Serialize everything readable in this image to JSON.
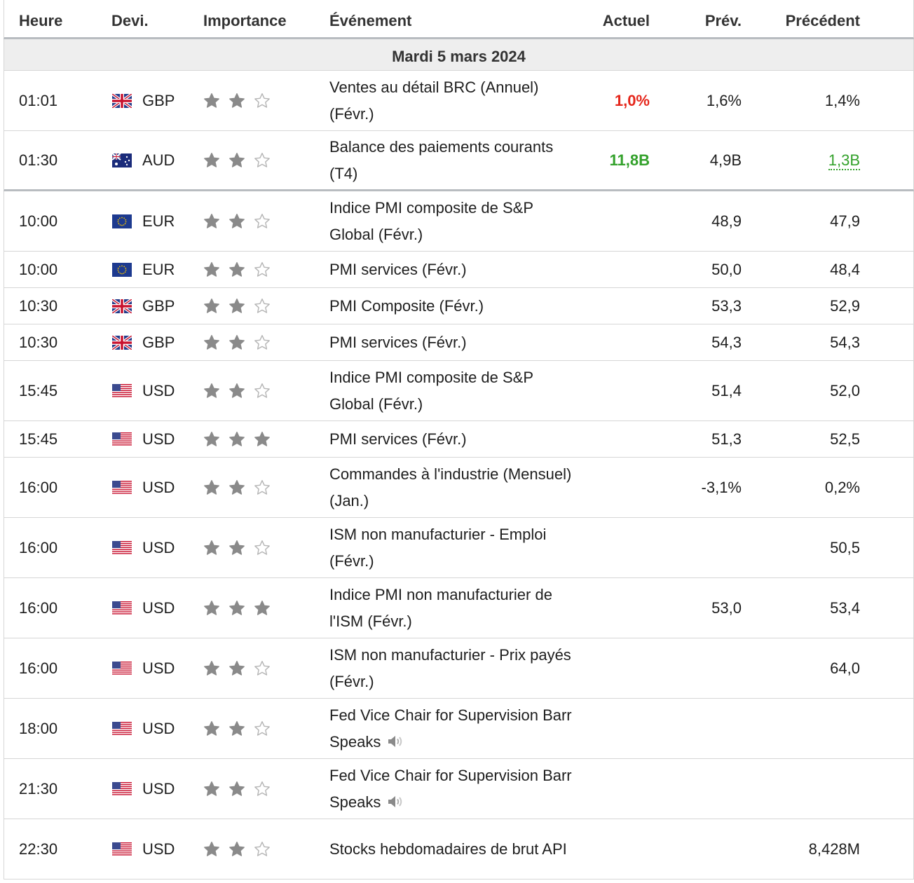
{
  "header": {
    "time": "Heure",
    "currency": "Devi.",
    "importance": "Importance",
    "event": "Événement",
    "actual": "Actuel",
    "forecast": "Prév.",
    "previous": "Précédent"
  },
  "date_label": "Mardi 5 mars 2024",
  "rows": [
    {
      "time": "01:01",
      "flag": "gb",
      "currency": "GBP",
      "stars": 2,
      "event": "Ventes au détail BRC (Annuel) (Févr.)",
      "actual": "1,0%",
      "actual_color": "#e5261b",
      "forecast": "1,6%",
      "previous": "1,4%",
      "previous_style": "normal"
    },
    {
      "time": "01:30",
      "flag": "au",
      "currency": "AUD",
      "stars": 2,
      "event": "Balance des paiements courants (T4)",
      "actual": "11,8B",
      "actual_color": "#33a12b",
      "forecast": "4,9B",
      "previous": "1,3B",
      "previous_style": "revised"
    },
    {
      "time": "10:00",
      "flag": "eu",
      "currency": "EUR",
      "stars": 2,
      "event": "Indice PMI composite de S&P Global (Févr.)",
      "actual": "",
      "forecast": "48,9",
      "previous": "47,9"
    },
    {
      "time": "10:00",
      "flag": "eu",
      "currency": "EUR",
      "stars": 2,
      "event": "PMI services (Févr.)",
      "actual": "",
      "forecast": "50,0",
      "previous": "48,4"
    },
    {
      "time": "10:30",
      "flag": "gb",
      "currency": "GBP",
      "stars": 2,
      "event": "PMI Composite (Févr.)",
      "actual": "",
      "forecast": "53,3",
      "previous": "52,9"
    },
    {
      "time": "10:30",
      "flag": "gb",
      "currency": "GBP",
      "stars": 2,
      "event": "PMI services (Févr.)",
      "actual": "",
      "forecast": "54,3",
      "previous": "54,3"
    },
    {
      "time": "15:45",
      "flag": "us",
      "currency": "USD",
      "stars": 2,
      "event": "Indice PMI composite de S&P Global (Févr.)",
      "actual": "",
      "forecast": "51,4",
      "previous": "52,0"
    },
    {
      "time": "15:45",
      "flag": "us",
      "currency": "USD",
      "stars": 3,
      "event": "PMI services (Févr.)",
      "actual": "",
      "forecast": "51,3",
      "previous": "52,5"
    },
    {
      "time": "16:00",
      "flag": "us",
      "currency": "USD",
      "stars": 2,
      "event": "Commandes à l'industrie (Mensuel) (Jan.)",
      "actual": "",
      "forecast": "-3,1%",
      "previous": "0,2%"
    },
    {
      "time": "16:00",
      "flag": "us",
      "currency": "USD",
      "stars": 2,
      "event": "ISM non manufacturier - Emploi (Févr.)",
      "actual": "",
      "forecast": "",
      "previous": "50,5"
    },
    {
      "time": "16:00",
      "flag": "us",
      "currency": "USD",
      "stars": 3,
      "event": "Indice PMI non manufacturier de l'ISM (Févr.)",
      "actual": "",
      "forecast": "53,0",
      "previous": "53,4"
    },
    {
      "time": "16:00",
      "flag": "us",
      "currency": "USD",
      "stars": 2,
      "event": "ISM non manufacturier - Prix payés (Févr.)",
      "actual": "",
      "forecast": "",
      "previous": "64,0"
    },
    {
      "time": "18:00",
      "flag": "us",
      "currency": "USD",
      "stars": 2,
      "event": "Fed Vice Chair for Supervision Barr Speaks",
      "speech": true,
      "actual": "",
      "forecast": "",
      "previous": ""
    },
    {
      "time": "21:30",
      "flag": "us",
      "currency": "USD",
      "stars": 2,
      "event": "Fed Vice Chair for Supervision Barr Speaks",
      "speech": true,
      "actual": "",
      "forecast": "",
      "previous": ""
    },
    {
      "time": "22:30",
      "flag": "us",
      "currency": "USD",
      "stars": 2,
      "event": "Stocks hebdomadaires de brut API",
      "actual": "",
      "forecast": "",
      "previous": "8,428M"
    }
  ]
}
